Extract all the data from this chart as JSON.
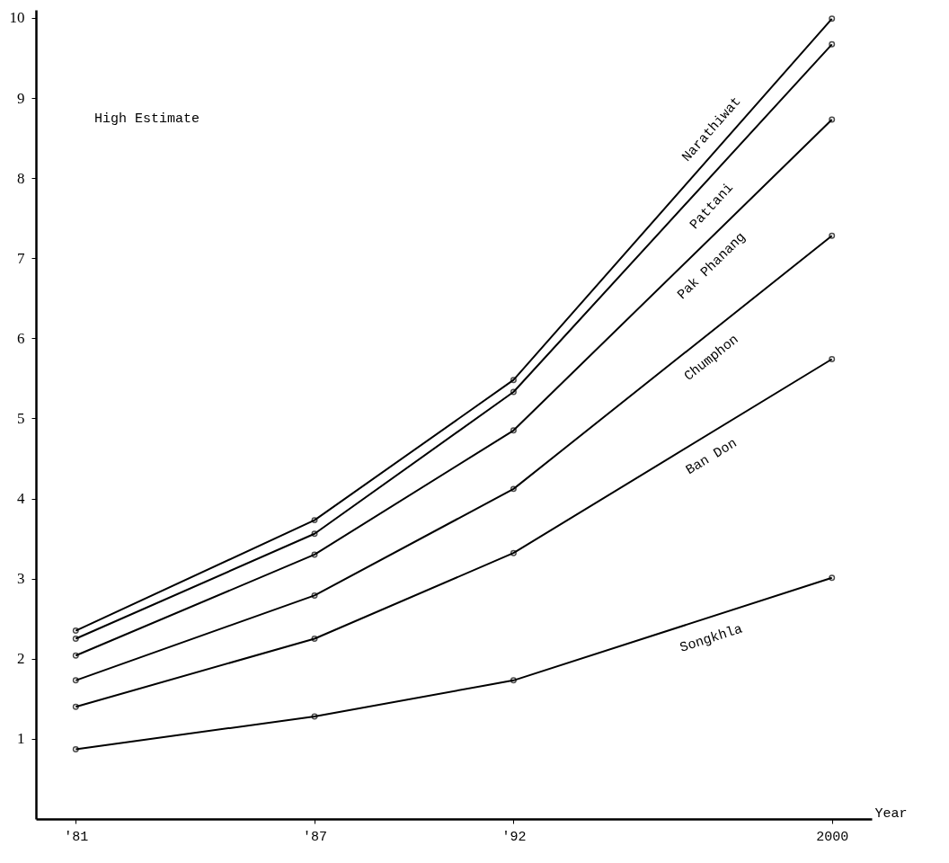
{
  "chart_data": {
    "type": "line",
    "xlabel": "Year",
    "annotations": [
      "High Estimate"
    ],
    "x": [
      1981,
      1987,
      1992,
      2000
    ],
    "xlim": [
      1980,
      2001
    ],
    "xticks": [
      {
        "value": 1981,
        "label": "'81"
      },
      {
        "value": 1987,
        "label": "'87"
      },
      {
        "value": 1992,
        "label": "'92"
      },
      2000
    ],
    "ylim": [
      0,
      10.1
    ],
    "yticks": [
      1,
      2,
      3,
      4,
      5,
      6,
      7,
      8,
      9,
      10
    ],
    "grid": false,
    "marker": "circle",
    "line_style": "solid",
    "series": [
      {
        "name": "Narathiwat",
        "color": "#000000",
        "values": [
          2.35,
          3.73,
          5.48,
          9.99
        ]
      },
      {
        "name": "Pattani",
        "color": "#000000",
        "values": [
          2.25,
          3.56,
          5.33,
          9.67
        ]
      },
      {
        "name": "Pak Phanang",
        "color": "#000000",
        "values": [
          2.04,
          3.3,
          4.85,
          8.73
        ]
      },
      {
        "name": "Chumphon",
        "color": "#000000",
        "values": [
          1.73,
          2.79,
          4.12,
          7.28
        ]
      },
      {
        "name": "Ban Don",
        "color": "#000000",
        "values": [
          1.4,
          2.25,
          3.32,
          5.74
        ]
      },
      {
        "name": "Songkhla",
        "color": "#000000",
        "values": [
          0.87,
          1.28,
          1.73,
          3.01
        ]
      }
    ]
  }
}
